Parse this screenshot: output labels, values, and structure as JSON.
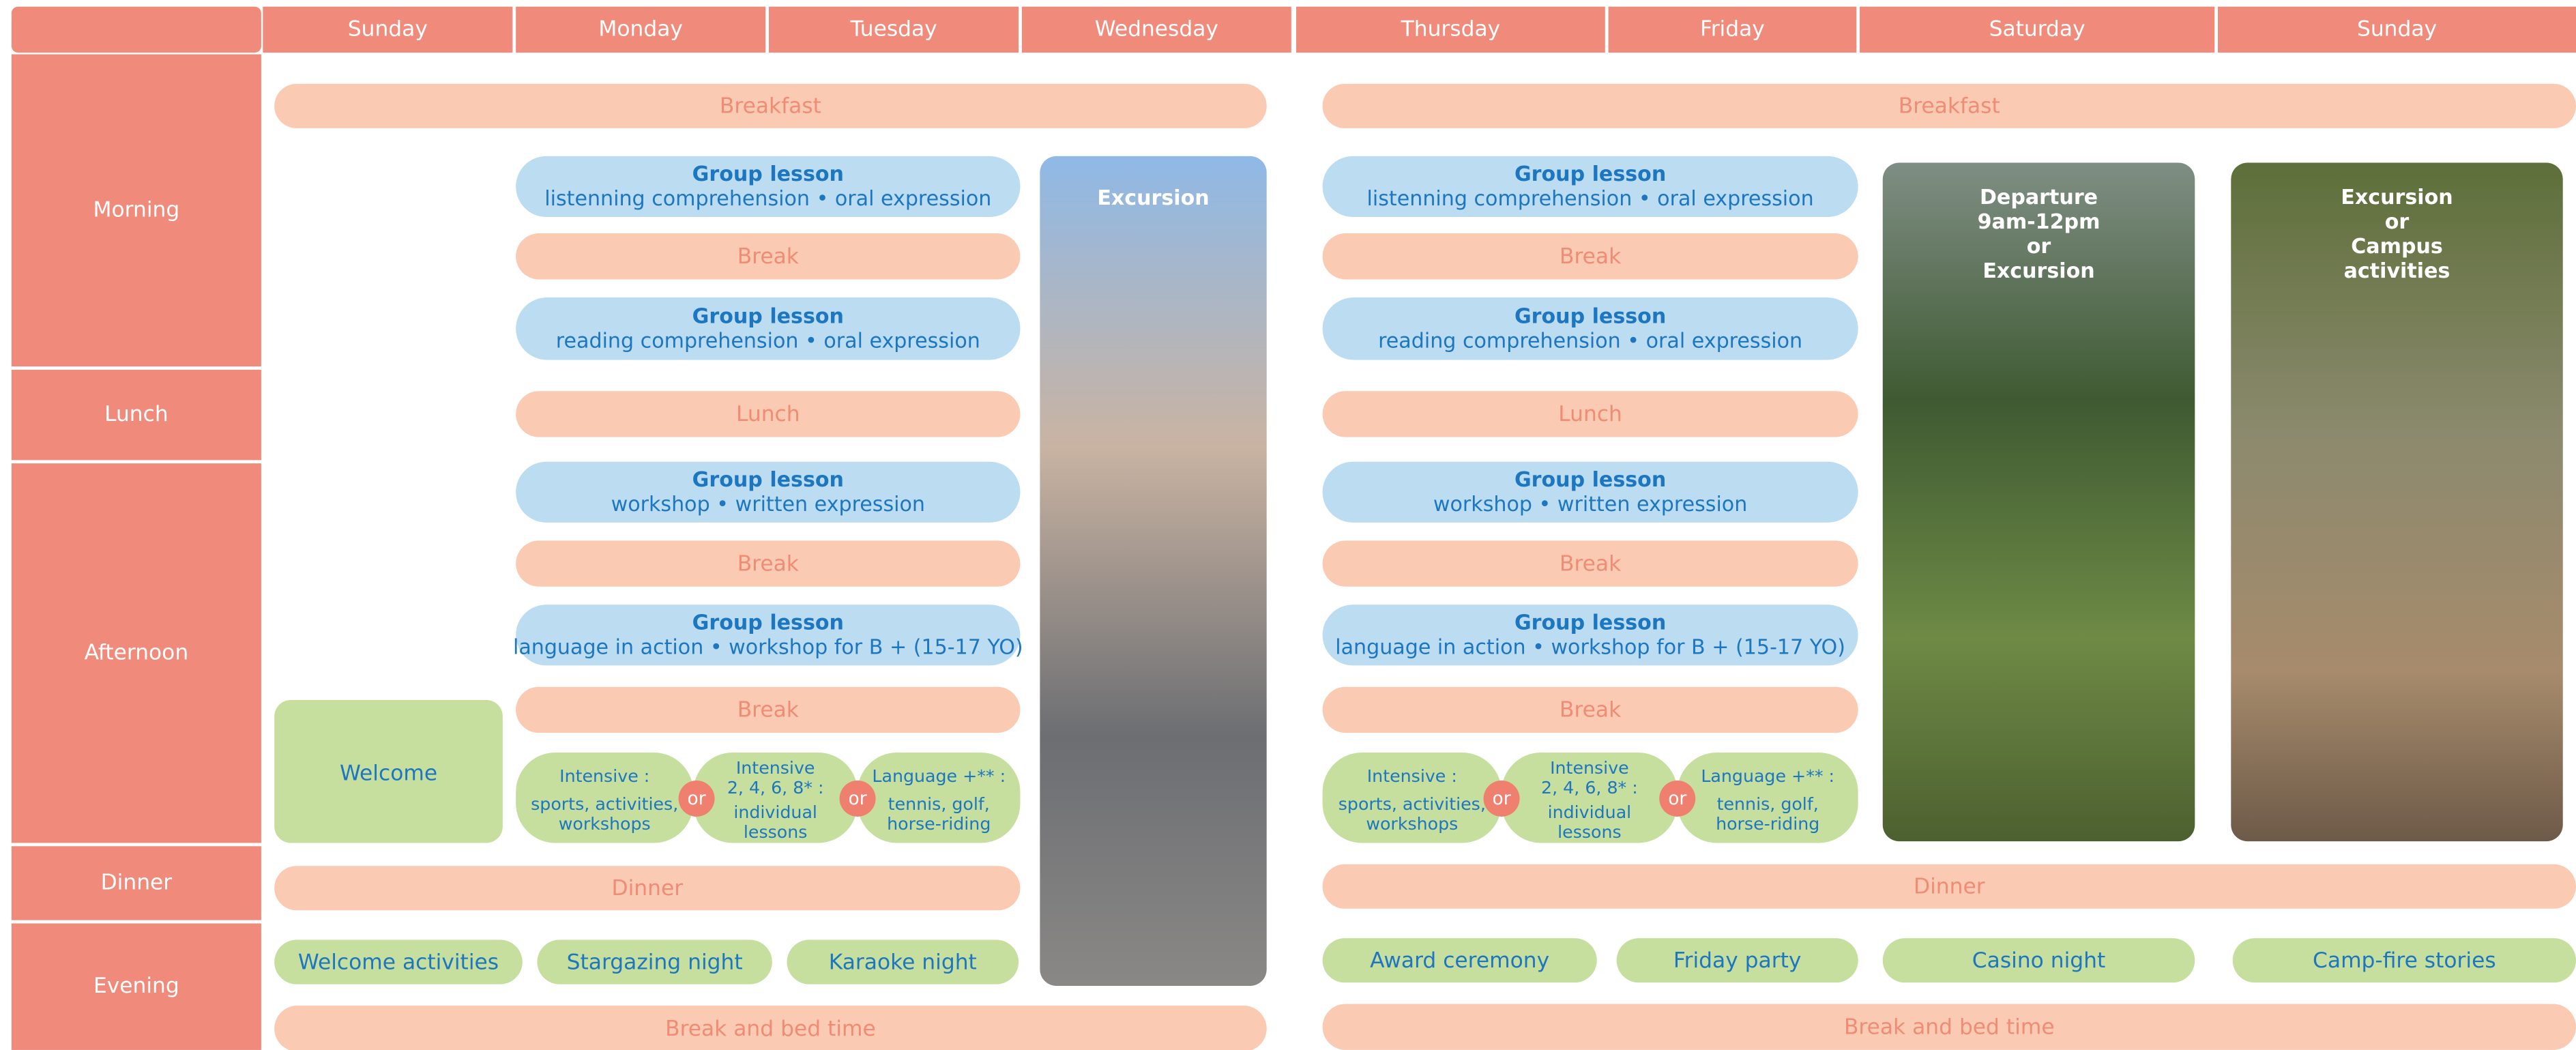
{
  "days": [
    "Sunday",
    "Monday",
    "Tuesday",
    "Wednesday",
    "Thursday",
    "Friday",
    "Saturday",
    "Sunday"
  ],
  "periods": [
    "Morning",
    "Lunch",
    "Afternoon",
    "Dinner",
    "Evening"
  ],
  "blocks": [
    {
      "breakfast": "Breakfast",
      "lesson1": {
        "title": "Group lesson",
        "detail": "listenning comprehension • oral expression"
      },
      "break1": "Break",
      "lesson2": {
        "title": "Group lesson",
        "detail": "reading comprehension • oral expression"
      },
      "lunch": "Lunch",
      "lesson3": {
        "title": "Group lesson",
        "detail": "workshop • written expression"
      },
      "break2": "Break",
      "lesson4": {
        "title": "Group lesson",
        "detail": "language in action • workshop for B + (15-17 YO)"
      },
      "break3": "Break",
      "options": [
        {
          "title": [
            "Intensive :"
          ],
          "detail": [
            "sports, activities,",
            "workshops"
          ]
        },
        {
          "title": [
            "Intensive",
            "2, 4, 6, 8* :"
          ],
          "detail": [
            "individual",
            "lessons"
          ]
        },
        {
          "title": [
            "Language +** :"
          ],
          "detail": [
            "tennis, golf,",
            "horse-riding"
          ]
        }
      ],
      "or": "or",
      "dinner": "Dinner",
      "bedtime": "Break and bed time"
    },
    {
      "breakfast": "Breakfast",
      "lesson1": {
        "title": "Group lesson",
        "detail": "listenning comprehension • oral expression"
      },
      "break1": "Break",
      "lesson2": {
        "title": "Group lesson",
        "detail": "reading comprehension • oral expression"
      },
      "lunch": "Lunch",
      "lesson3": {
        "title": "Group lesson",
        "detail": "workshop • written expression"
      },
      "break2": "Break",
      "lesson4": {
        "title": "Group lesson",
        "detail": "language in action • workshop for B + (15-17 YO)"
      },
      "break3": "Break",
      "options": [
        {
          "title": [
            "Intensive :"
          ],
          "detail": [
            "sports, activities,",
            "workshops"
          ]
        },
        {
          "title": [
            "Intensive",
            "2, 4, 6, 8* :"
          ],
          "detail": [
            "individual",
            "lessons"
          ]
        },
        {
          "title": [
            "Language +** :"
          ],
          "detail": [
            "tennis, golf,",
            "horse-riding"
          ]
        }
      ],
      "or": "or",
      "dinner": "Dinner",
      "bedtime": "Break and bed time"
    }
  ],
  "welcome": "Welcome",
  "excursions": [
    [
      "Excursion"
    ],
    [
      "Departure",
      "9am-12pm",
      "or",
      "Excursion"
    ],
    [
      "Excursion",
      "or",
      "Campus",
      "activities"
    ]
  ],
  "evening": [
    "Welcome activities",
    "Stargazing night",
    "Karaoke night",
    "Award ceremony",
    "Friday party",
    "Casino night",
    "Camp-fire stories"
  ]
}
